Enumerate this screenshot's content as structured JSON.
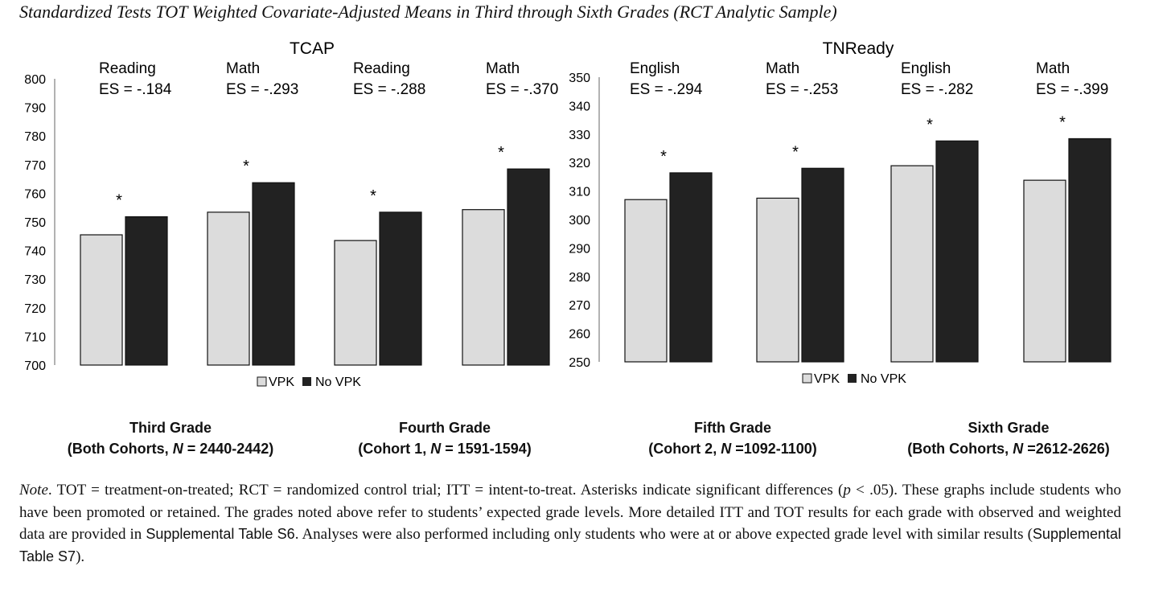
{
  "figure": {
    "title": "Standardized Tests TOT Weighted Covariate-Adjusted Means in Third through Sixth Grades (RCT Analytic Sample)"
  },
  "colors": {
    "vpk": "#dcdcdc",
    "novpk": "#222222",
    "axis": "#666666"
  },
  "legend": {
    "vpk": "VPK",
    "novpk": "No VPK"
  },
  "chart_data": [
    {
      "type": "bar",
      "title": "TCAP",
      "ylim": [
        700,
        800
      ],
      "yticks": [
        "800",
        "790",
        "780",
        "770",
        "760",
        "750",
        "740",
        "730",
        "720",
        "710",
        "700"
      ],
      "legend_position": "bottom-center",
      "groups": [
        {
          "subject": "Reading",
          "es": "ES = -.184",
          "vpk": 745.5,
          "novpk": 751.8,
          "sig": "*"
        },
        {
          "subject": "Math",
          "es": "ES = -.293",
          "vpk": 753.4,
          "novpk": 763.7,
          "sig": "*"
        },
        {
          "subject": "Reading",
          "es": "ES = -.288",
          "vpk": 743.5,
          "novpk": 753.4,
          "sig": "*"
        },
        {
          "subject": "Math",
          "es": "ES = -.370",
          "vpk": 754.3,
          "novpk": 768.5,
          "sig": "*"
        }
      ]
    },
    {
      "type": "bar",
      "title": "TNReady",
      "ylim": [
        250,
        350
      ],
      "yticks": [
        "350",
        "340",
        "330",
        "320",
        "310",
        "300",
        "290",
        "280",
        "270",
        "260",
        "250"
      ],
      "legend_position": "bottom-center",
      "groups": [
        {
          "subject": "English",
          "es": "ES = -.294",
          "vpk": 307.0,
          "novpk": 316.4,
          "sig": "*"
        },
        {
          "subject": "Math",
          "es": "ES = -.253",
          "vpk": 307.5,
          "novpk": 318.0,
          "sig": "*"
        },
        {
          "subject": "English",
          "es": "ES = -.282",
          "vpk": 318.9,
          "novpk": 327.6,
          "sig": "*"
        },
        {
          "subject": "Math",
          "es": "ES = -.399",
          "vpk": 313.8,
          "novpk": 328.4,
          "sig": "*"
        }
      ]
    }
  ],
  "grades": [
    {
      "line1": "Third Grade",
      "line2a": "(Both Cohorts, ",
      "n_label": "N",
      "line2b": " = 2440-2442)"
    },
    {
      "line1": "Fourth Grade",
      "line2a": "(Cohort 1, ",
      "n_label": "N",
      "line2b": " = 1591-1594)"
    },
    {
      "line1": "Fifth Grade",
      "line2a": "(Cohort 2, ",
      "n_label": "N",
      "line2b": " =1092-1100)"
    },
    {
      "line1": "Sixth Grade",
      "line2a": "(Both Cohorts, ",
      "n_label": "N",
      "line2b": " =2612-2626)"
    }
  ],
  "note": {
    "label": "Note",
    "text1": ".   TOT = treatment-on-treated; RCT = randomized control trial; ITT = intent-to-treat. Asterisks indicate significant differences (",
    "p": "p",
    "text2": " < .05). These graphs include students who have been promoted or retained. The grades noted above refer to students’ expected grade levels. More detailed ITT and TOT results for each grade with observed and weighted data are provided in ",
    "table1": "Supplemental Table S6",
    "text3": ". Analyses were also performed including only students who were at or above expected grade level with similar results (",
    "table2": "Supplemental Table S7",
    "text4": ")."
  }
}
